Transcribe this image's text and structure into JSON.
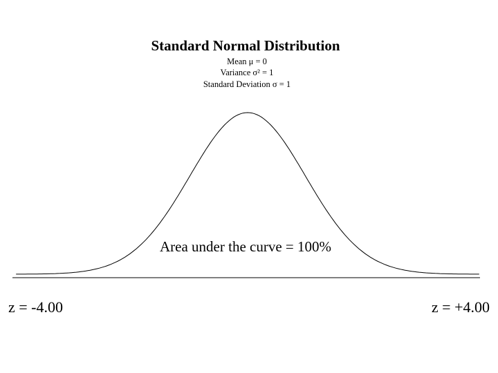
{
  "title": "Standard Normal Distribution",
  "parameters": [
    "Mean μ = 0",
    "Variance σ² = 1",
    "Standard Deviation σ = 1"
  ],
  "area_label": "Area under the curve = 100%",
  "left_label": "z = -4.00",
  "right_label": "z = +4.00"
}
